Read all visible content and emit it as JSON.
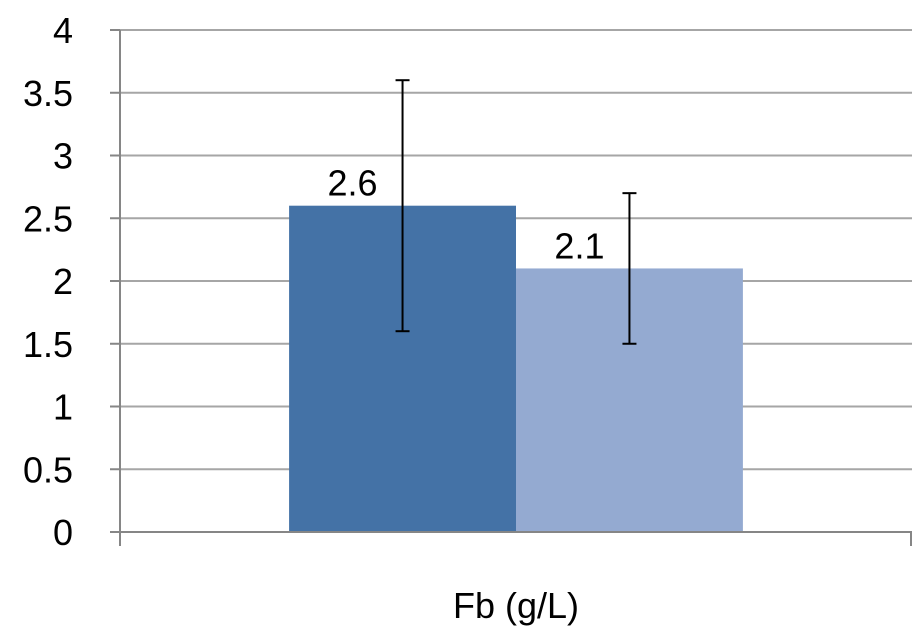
{
  "chart_data": {
    "type": "bar",
    "categories": [
      "Fb (g/L)"
    ],
    "series": [
      {
        "values": [
          2.6
        ],
        "error": [
          1.0
        ],
        "color": "#4472a6",
        "data_label": "2.6"
      },
      {
        "values": [
          2.1
        ],
        "error": [
          0.6
        ],
        "color": "#94aad1",
        "data_label": "2.1"
      }
    ],
    "title": "",
    "xlabel": "",
    "ylabel": "",
    "ylim": [
      0,
      4
    ],
    "yticks": [
      "0",
      "0.5",
      "1",
      "1.5",
      "2",
      "2.5",
      "3",
      "3.5",
      "4"
    ],
    "grid": true,
    "legend": "none",
    "colors": {
      "grid": "#a6a6a6",
      "axis": "#868686",
      "error_bar": "#000000"
    }
  }
}
